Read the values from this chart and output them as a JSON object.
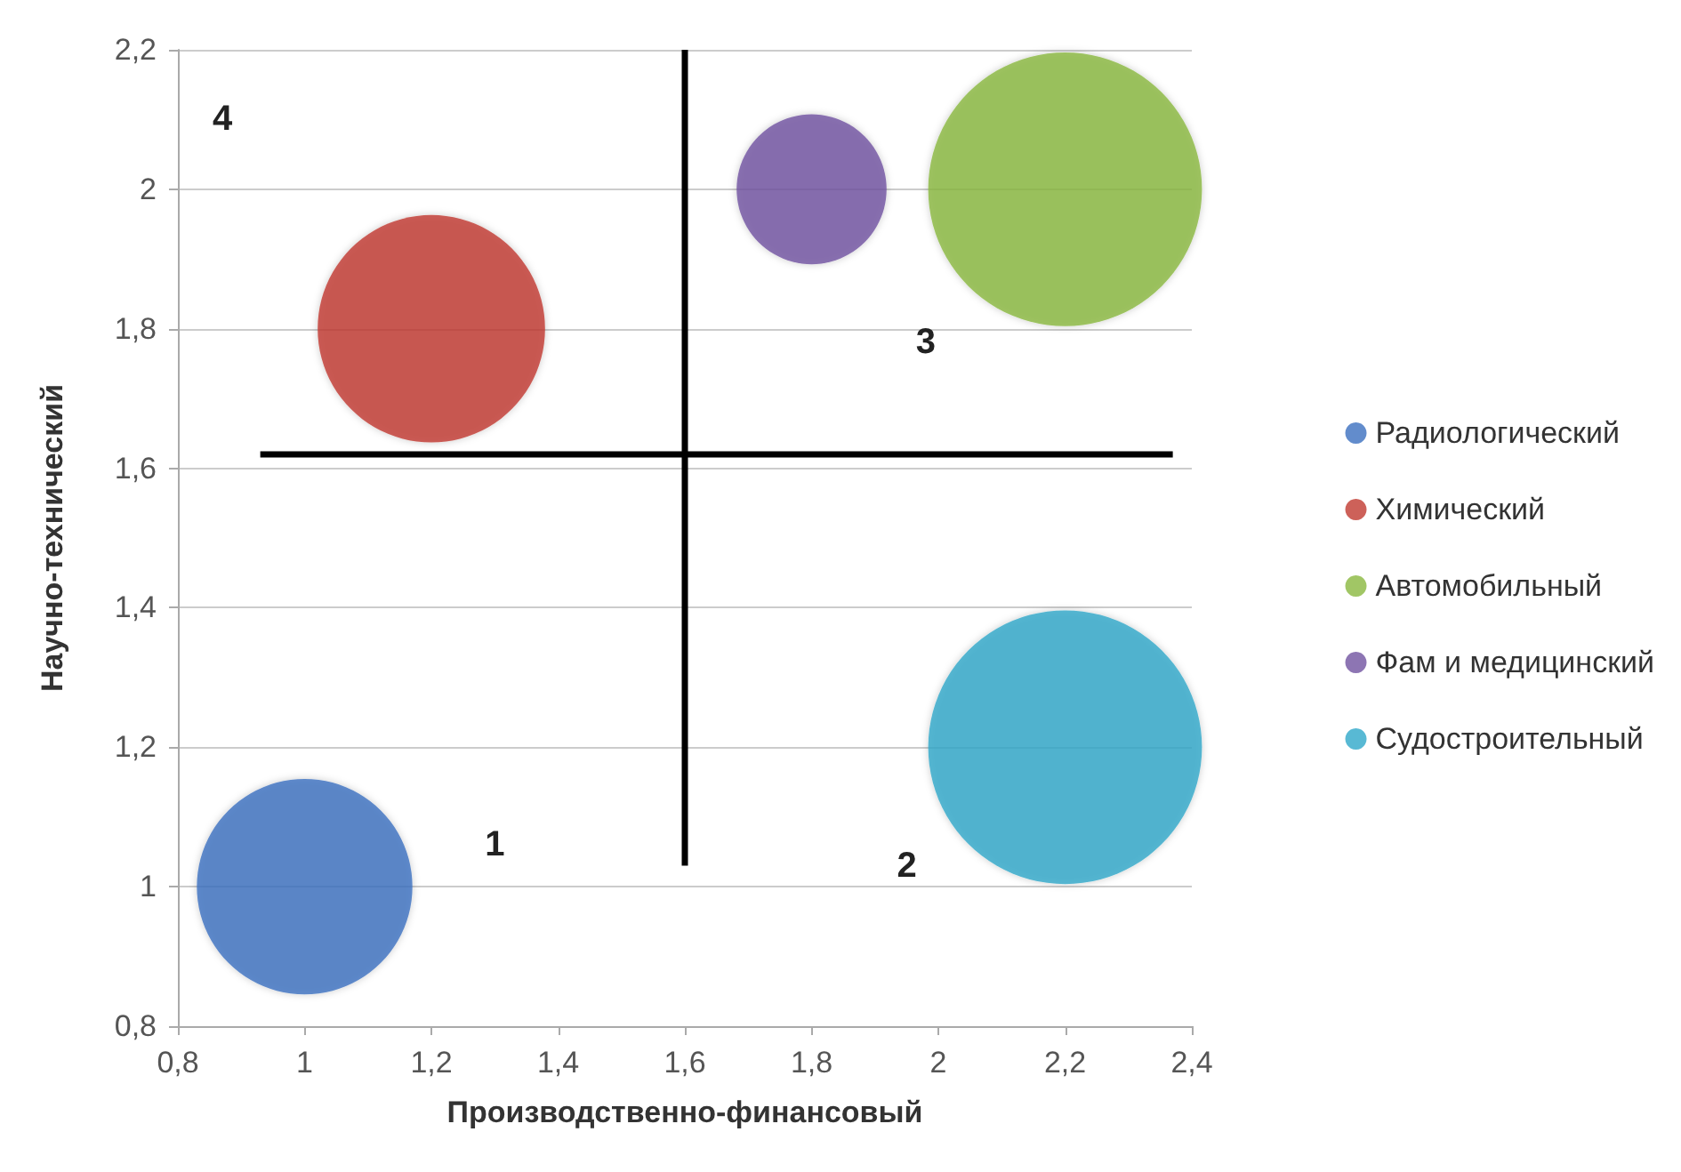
{
  "chart_data": {
    "type": "bubble",
    "xlabel": "Производственно-финансовый",
    "ylabel": "Научно-технический",
    "xlim": [
      0.8,
      2.4
    ],
    "ylim": [
      0.8,
      2.2
    ],
    "xticks": [
      {
        "value": 0.8,
        "label": "0,8"
      },
      1,
      {
        "value": 1.2,
        "label": "1,2"
      },
      {
        "value": 1.4,
        "label": "1,4"
      },
      {
        "value": 1.6,
        "label": "1,6"
      },
      {
        "value": 1.8,
        "label": "1,8"
      },
      2,
      {
        "value": 2.2,
        "label": "2,2"
      },
      {
        "value": 2.4,
        "label": "2,4"
      }
    ],
    "yticks": [
      {
        "value": 0.8,
        "label": "0,8"
      },
      1,
      {
        "value": 1.2,
        "label": "1,2"
      },
      {
        "value": 1.4,
        "label": "1,4"
      },
      {
        "value": 1.6,
        "label": "1,6"
      },
      {
        "value": 1.8,
        "label": "1,8"
      },
      2,
      {
        "value": 2.2,
        "label": "2,2"
      }
    ],
    "grid": "y",
    "legend": "right",
    "marker": "circle",
    "series": [
      {
        "name": "Радиологический",
        "color": "#3b6fbf",
        "x": [
          1
        ],
        "values": [
          1
        ],
        "sizes": [
          0.62
        ]
      },
      {
        "name": "Химический",
        "color": "#c0392f",
        "x": [
          1.2
        ],
        "values": [
          1.8
        ],
        "sizes": [
          0.69
        ]
      },
      {
        "name": "Автомобильный",
        "color": "#8ab83e",
        "x": [
          2.2
        ],
        "values": [
          2
        ],
        "sizes": [
          1
        ]
      },
      {
        "name": "Фам и медицинский",
        "color": "#7052a0",
        "x": [
          1.8
        ],
        "values": [
          2
        ],
        "sizes": [
          0.3
        ]
      },
      {
        "name": "Судостроительный",
        "color": "#2ea8c9",
        "x": [
          2.2
        ],
        "values": [
          1.2
        ],
        "sizes": [
          1
        ]
      },
      {
        "type": "line",
        "color": "#000000",
        "marker": "none",
        "x": [
          1.6,
          1.6
        ],
        "values": [
          1.03,
          2.2
        ]
      },
      {
        "type": "line",
        "color": "#000000",
        "marker": "none",
        "x": [
          0.93,
          2.37
        ],
        "values": [
          1.62,
          1.62
        ]
      }
    ],
    "annotations": [
      "1",
      "2",
      "3",
      "4"
    ]
  }
}
